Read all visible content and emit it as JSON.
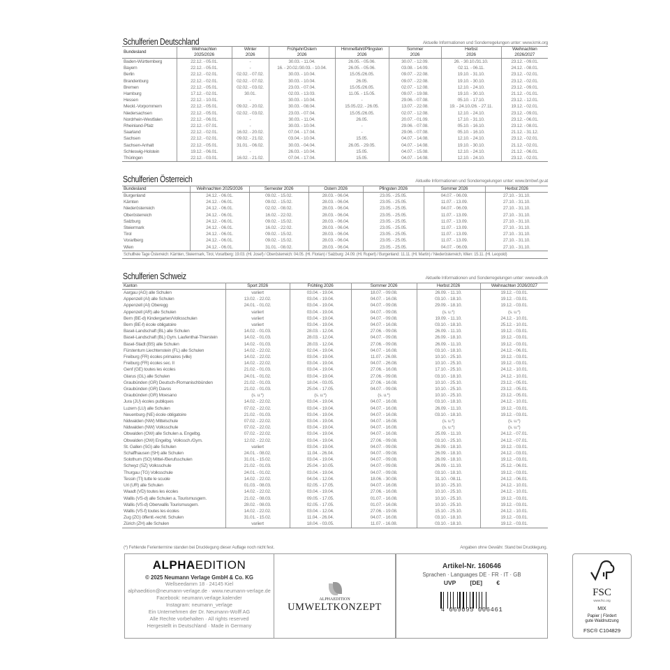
{
  "germany": {
    "title": "Schulferien Deutschland",
    "info": "Aktuelle Informationen und Sonderregelungen unter: www.kmk.org",
    "headers": [
      [
        "Bundesland",
        ""
      ],
      [
        "Weihnachten",
        "2025/2026"
      ],
      [
        "Winter",
        "2026"
      ],
      [
        "Frühjahr/Ostern",
        "2026"
      ],
      [
        "Himmelfahrt/Pfingsten",
        "2026"
      ],
      [
        "Sommer",
        "2026"
      ],
      [
        "Herbst",
        "2026"
      ],
      [
        "Weihnachten",
        "2026/2027"
      ]
    ],
    "rows": [
      [
        "Baden-Württemberg",
        "22.12. - 05.01.",
        "-",
        "30.03. - 11.04.",
        "26.05. - 05.06.",
        "30.07. - 12.09.",
        "26. - 30.10./31.10.",
        "23.12. - 09.01."
      ],
      [
        "Bayern",
        "22.12. - 05.01.",
        "-",
        "16. - 20.02./30.03. - 10.04.",
        "26.05. - 05.06.",
        "03.08. - 14.09.",
        "02.11. - 06.11.",
        "24.12. - 08.01."
      ],
      [
        "Berlin",
        "22.12. - 02.01.",
        "02.02. - 07.02.",
        "30.03. - 10.04.",
        "15.05./26.05.",
        "09.07. - 22.08.",
        "19.10. - 31.10.",
        "23.12. - 02.01."
      ],
      [
        "Brandenburg",
        "22.12. - 02.01.",
        "02.02. - 07.02.",
        "30.03. - 10.04.",
        "26.05.",
        "09.07. - 22.08.",
        "19.10. - 30.10.",
        "23.12. - 02.01."
      ],
      [
        "Bremen",
        "22.12. - 05.01.",
        "02.02. - 03.02.",
        "23.03. - 07.04.",
        "15.05./26.05.",
        "02.07. - 12.08.",
        "12.10. - 24.10.",
        "23.12. - 09.01."
      ],
      [
        "Hamburg",
        "17.12. - 02.01.",
        "30.01.",
        "02.03. - 13.03.",
        "11.05. - 15.05.",
        "09.07. - 19.08.",
        "19.10. - 30.10.",
        "21.12. - 01.01."
      ],
      [
        "Hessen",
        "22.12. - 10.01.",
        "-",
        "30.03. - 10.04.",
        "-",
        "29.06. - 07.08.",
        "05.10. - 17.10.",
        "23.12. - 12.01."
      ],
      [
        "Meckl.-Vorpommern",
        "22.12. - 05.01.",
        "09.02. - 20.02.",
        "30.03. - 08.04.",
        "15.05./22. - 26.05.",
        "13.07. - 22.08.",
        "19. - 24.10./26. - 27.11.",
        "19.12. - 02.01."
      ],
      [
        "Niedersachsen",
        "22.12. - 05.01.",
        "02.02. - 03.02.",
        "23.03. - 07.04.",
        "15.05./26.05.",
        "02.07. - 12.08.",
        "12.10. - 24.10.",
        "23.12. - 09.01."
      ],
      [
        "Nordrhein-Westfalen",
        "22.12. - 06.01.",
        "-",
        "30.03. - 11.04.",
        "26.05.",
        "20.07. - 01.09.",
        "17.10. - 31.10.",
        "23.12. - 06.01."
      ],
      [
        "Rheinland-Pfalz",
        "22.12. - 07.01.",
        "-",
        "30.03. - 10.04.",
        "-",
        "29.06. - 07.08.",
        "05.10. - 16.10.",
        "23.12. - 08.01."
      ],
      [
        "Saarland",
        "22.12. - 02.01.",
        "16.02. - 20.02.",
        "07.04. - 17.04.",
        "-",
        "29.06. - 07.08.",
        "05.10. - 16.10.",
        "21.12. - 31.12."
      ],
      [
        "Sachsen",
        "22.12. - 02.01.",
        "09.02. - 21.02.",
        "03.04. - 10.04.",
        "15.05.",
        "04.07. - 14.08.",
        "12.10. - 24.10.",
        "23.12. - 02.01."
      ],
      [
        "Sachsen-Anhalt",
        "22.12. - 05.01.",
        "31.01. - 06.02.",
        "30.03. - 04.04.",
        "26.05. - 29.05.",
        "04.07. - 14.08.",
        "19.10. - 30.10.",
        "21.12. - 02.01."
      ],
      [
        "Schleswig-Holstein",
        "19.12. - 06.01.",
        "-",
        "26.03. - 10.04.",
        "15.05.",
        "04.07. - 15.08.",
        "12.10. - 24.10.",
        "21.12. - 06.01."
      ],
      [
        "Thüringen",
        "22.12. - 03.01.",
        "16.02. - 21.02.",
        "07.04. - 17.04.",
        "15.05.",
        "04.07. - 14.08.",
        "12.10. - 24.10.",
        "23.12. - 02.01."
      ]
    ]
  },
  "austria": {
    "title": "Schulferien Österreich",
    "info": "Aktuelle Informationen und Sonderregelungen unter: www.bmbwf.gv.at",
    "headers": [
      [
        "Bundesland"
      ],
      [
        "Weihnachten 2025/2026"
      ],
      [
        "Semester 2026"
      ],
      [
        "Ostern 2026"
      ],
      [
        "Pfingsten 2026"
      ],
      [
        "Sommer 2026"
      ],
      [
        "Herbst 2026"
      ]
    ],
    "rows": [
      [
        "Burgenland",
        "24.12. - 06.01.",
        "09.02. - 15.02.",
        "28.03. - 06.04.",
        "23.05. - 25.05.",
        "04.07. - 06.09.",
        "27.10. - 31.10."
      ],
      [
        "Kärnten",
        "24.12. - 06.01.",
        "09.02. - 15.02.",
        "28.03. - 06.04.",
        "23.05. - 25.05.",
        "11.07. - 13.09.",
        "27.10. - 31.10."
      ],
      [
        "Niederösterreich",
        "24.12. - 06.01.",
        "02.02. - 08.02.",
        "28.03. - 06.04.",
        "23.05. - 25.05.",
        "04.07. - 06.09.",
        "27.10. - 31.10."
      ],
      [
        "Oberösterreich",
        "24.12. - 06.01.",
        "16.02. - 22.02.",
        "28.03. - 06.04.",
        "23.05. - 25.05.",
        "11.07. - 13.09.",
        "27.10. - 31.10."
      ],
      [
        "Salzburg",
        "24.12. - 06.01.",
        "09.02. - 15.02.",
        "28.03. - 06.04.",
        "23.05. - 25.05.",
        "11.07. - 13.09.",
        "27.10. - 31.10."
      ],
      [
        "Steiermark",
        "24.12. - 06.01.",
        "16.02. - 22.02.",
        "28.03. - 06.04.",
        "23.05. - 25.05.",
        "11.07. - 13.09.",
        "27.10. - 31.10."
      ],
      [
        "Tirol",
        "24.12. - 06.01.",
        "09.02. - 15.02.",
        "28.03. - 06.04.",
        "23.05. - 25.05.",
        "11.07. - 13.09.",
        "27.10. - 31.10."
      ],
      [
        "Vorarlberg",
        "24.12. - 06.01.",
        "09.02. - 15.02.",
        "28.03. - 06.04.",
        "23.05. - 25.05.",
        "11.07. - 13.09.",
        "27.10. - 31.10."
      ],
      [
        "Wien",
        "24.12. - 06.01.",
        "31.01. - 08.02.",
        "28.03. - 06.04.",
        "23.05. - 25.05.",
        "04.07. - 06.09.",
        "27.10. - 31.10."
      ]
    ],
    "note": "Schulfreie Tage Österreich: Kärnten, Steiermark, Tirol, Vorarlberg: 19.03. (Hl. Josef) / Oberösterreich: 04.05. (Hl. Florian) / Salzburg: 24.09. (Hl. Rupert) / Burgenland: 11.11. (Hl. Martin) / Niederösterreich, Wien: 15.11. (Hl. Leopold)"
  },
  "switzerland": {
    "title": "Schulferien Schweiz",
    "info": "Aktuelle Informationen und Sonderregelungen unter: www.edk.ch",
    "headers": [
      [
        "Kanton"
      ],
      [
        "Sport 2026"
      ],
      [
        "Frühling 2026"
      ],
      [
        "Sommer 2026"
      ],
      [
        "Herbst 2026"
      ],
      [
        "Weihnachten 2026/2027"
      ]
    ],
    "rows": [
      [
        "Aargau (AG) alle Schulen",
        "variiert",
        "03.04. - 19.04.",
        "18.07. - 09.08.",
        "26.09. - 11.10.",
        "19.12. - 03.01."
      ],
      [
        "Appenzell (AI) alle Schulen",
        "13.02. - 22.02.",
        "03.04. - 19.04.",
        "04.07. - 16.08.",
        "03.10. - 18.10.",
        "19.12. - 03.01."
      ],
      [
        "Appenzell (AI) Oberegg",
        "24.01. - 01.02.",
        "03.04. - 19.04.",
        "04.07. - 09.08.",
        "29.09. - 18.10.",
        "19.12. - 03.01."
      ],
      [
        "Appenzell (AR) alle Schulen",
        "variiert",
        "03.04. - 19.04.",
        "04.07. - 09.08.",
        "(s. u.*)",
        "(s. u.*)"
      ],
      [
        "Bern (BE-d) Kindergarten/Volksschulen",
        "variiert",
        "03.04. - 19.04.",
        "04.07. - 09.08.",
        "19.09. - 11.10.",
        "24.12. - 10.01."
      ],
      [
        "Bern (BE-f) école obligatoire",
        "variiert",
        "03.04. - 19.04.",
        "04.07. - 16.08.",
        "03.10. - 18.10.",
        "25.12. - 10.01."
      ],
      [
        "Basel-Landschaft (BL) alle Schulen",
        "14.02. - 01.03.",
        "28.03. - 12.04.",
        "27.06. - 09.08.",
        "26.09. - 11.10.",
        "19.12. - 03.01."
      ],
      [
        "Basel-Landschaft (BL) Gym. Laufenthal-Thierstein",
        "14.02. - 01.03.",
        "28.03. - 12.04.",
        "04.07. - 09.08.",
        "26.09. - 18.10.",
        "19.12. - 03.01."
      ],
      [
        "Basel-Stadt (BS) alle Schulen",
        "14.02. - 01.03.",
        "28.03. - 12.04.",
        "27.06. - 09.08.",
        "26.09. - 11.10.",
        "19.12. - 03.01."
      ],
      [
        "Fürstentum Liechtenstein (FL) alle Schulen",
        "14.02. - 22.02.",
        "02.04. - 19.04.",
        "04.07. - 16.08.",
        "03.10. - 18.10.",
        "24.12. - 06.01."
      ],
      [
        "Freiburg (FR) écoles primaires (ville)",
        "14.02. - 22.02.",
        "03.04. - 19.04.",
        "11.07. - 26.08.",
        "10.10. - 25.10.",
        "19.12. - 03.01."
      ],
      [
        "Freiburg (FR) écoles sec. II",
        "14.02. - 22.02.",
        "03.04. - 19.04.",
        "04.07. - 26.08.",
        "10.10. - 25.10.",
        "19.12. - 03.01."
      ],
      [
        "Genf (GE) toutes les écoles",
        "21.02. - 01.03.",
        "03.04. - 19.04.",
        "27.06. - 16.08.",
        "17.10. - 25.10.",
        "24.12. - 10.01."
      ],
      [
        "Glarus (GL) alle Schulen",
        "24.01. - 01.02.",
        "03.04. - 19.04.",
        "27.06. - 09.08.",
        "03.10. - 18.10.",
        "24.12. - 10.01."
      ],
      [
        "Graubünden (GR) Deutsch-/Romanischbünden",
        "21.02. - 01.03.",
        "18.04. - 03.05.",
        "27.06. - 16.08.",
        "10.10. - 25.10.",
        "23.12. - 05.01."
      ],
      [
        "Graubünden (GR) Davos",
        "21.02. - 01.03.",
        "25.04. - 17.05.",
        "04.07. - 09.08.",
        "10.10. - 25.10.",
        "23.12. - 05.01."
      ],
      [
        "Graubünden (GR) Moesano",
        "(s. u.*)",
        "(s. u.*)",
        "(s. u.*)",
        "10.10. - 25.10.",
        "23.12. - 05.01."
      ],
      [
        "Jura (JU) écoles publiques",
        "14.02. - 22.02.",
        "03.04. - 19.04.",
        "04.07. - 16.08.",
        "03.10. - 18.10.",
        "24.12. - 10.01."
      ],
      [
        "Luzern (LU) alle Schulen",
        "07.02. - 22.02.",
        "03.04. - 19.04.",
        "04.07. - 16.08.",
        "26.09. - 11.10.",
        "19.12. - 03.01."
      ],
      [
        "Neuenburg (NE) école obligatoire",
        "21.02. - 01.03.",
        "03.04. - 19.04.",
        "04.07. - 16.08.",
        "03.10. - 18.10.",
        "19.12. - 03.01."
      ],
      [
        "Nidwalden (NW) Mittelschule",
        "07.02. - 22.02.",
        "03.04. - 19.04.",
        "04.07. - 16.08.",
        "(s. u.*)",
        "(s. u.*)"
      ],
      [
        "Nidwalden (NW) Volksschule",
        "07.02. - 22.02.",
        "03.04. - 19.04.",
        "04.07. - 16.08.",
        "(s. u.*)",
        "(s. u.*)"
      ],
      [
        "Obwalden (OW) alle Schulen a. Engelbg.",
        "07.02. - 22.02.",
        "03.04. - 19.04.",
        "04.07. - 16.08.",
        "25.09. - 11.10.",
        "24.12. - 07.01."
      ],
      [
        "Obwalden (OW) Engelbg. Volkssch./Gym.",
        "12.02. - 22.02.",
        "03.04. - 19.04.",
        "27.06. - 09.08.",
        "03.10. - 25.10.",
        "24.12. - 07.01."
      ],
      [
        "St. Gallen (SG) alle Schulen",
        "variiert",
        "03.04. - 19.04.",
        "04.07. - 09.08.",
        "26.09. - 18.10.",
        "19.12. - 03.01."
      ],
      [
        "Schaffhausen (SH) alle Schulen",
        "24.01. - 08.02.",
        "11.04. - 26.04.",
        "04.07. - 09.08.",
        "26.09. - 18.10.",
        "24.12. - 03.01."
      ],
      [
        "Solothurn (SO) Mittel-/Berufsschulen",
        "31.01. - 15.02.",
        "03.04. - 19.04.",
        "04.07. - 09.08.",
        "26.09. - 18.10.",
        "19.12. - 03.01."
      ],
      [
        "Schwyz (SZ) Volksschule",
        "21.02. - 01.03.",
        "25.04. - 10.05.",
        "04.07. - 09.08.",
        "26.09. - 11.10.",
        "25.12. - 06.01."
      ],
      [
        "Thurgau (TG) Volksschule",
        "24.01. - 01.02.",
        "03.04. - 19.04.",
        "04.07. - 09.08.",
        "03.10. - 18.10.",
        "19.12. - 03.01."
      ],
      [
        "Tessin (TI) tutte le scuole",
        "14.02. - 22.02.",
        "04.04. - 12.04.",
        "18.06. - 30.08.",
        "31.10. - 08.11.",
        "24.12. - 06.01."
      ],
      [
        "Uri (UR) alle Schulen",
        "01.03. - 08.03.",
        "02.05. - 17.05.",
        "04.07. - 16.08.",
        "10.10. - 25.10.",
        "24.12. - 10.01."
      ],
      [
        "Waadt (VD) toutes les écoles",
        "14.02. - 22.02.",
        "03.04. - 19.04.",
        "27.06. - 16.08.",
        "10.10. - 25.10.",
        "24.12. - 10.01."
      ],
      [
        "Wallis (VS-d) alle Schulen a. Tourismusgem.",
        "21.02. - 08.03.",
        "09.05. - 17.05.",
        "01.07. - 16.08.",
        "10.10. - 25.10.",
        "19.12. - 03.01."
      ],
      [
        "Wallis (VS-d) Oberwallis Tourismusgem.",
        "28.02. - 08.03.",
        "02.05. - 17.05.",
        "01.07. - 16.08.",
        "10.10. - 25.10.",
        "19.12. - 03.01."
      ],
      [
        "Wallis (VS-f) toutes les écoles",
        "14.02. - 22.02.",
        "03.04. - 12.04.",
        "27.06. - 19.08.",
        "15.10. - 25.10.",
        "24.12. - 10.01."
      ],
      [
        "Zug (ZG) öffentl.-rechtl. Schulen",
        "31.01. - 15.02.",
        "11.04. - 26.04.",
        "04.07. - 16.08.",
        "03.10. - 18.10.",
        "19.12. - 03.01."
      ],
      [
        "Zürich (ZH) alle Schulen",
        "variiert",
        "18.04. - 03.05.",
        "11.07. - 16.08.",
        "03.10. - 18.10.",
        "19.12. - 03.01."
      ]
    ]
  },
  "footer": {
    "note": "(*) Fehlende Ferientermine standen bei Drucklegung dieser Auflage noch nicht fest.",
    "disclaimer": "Angaben ohne Gewähr. Stand bei Drucklegung.",
    "publisher": {
      "logo_bold": "ALPHA",
      "logo_light": "EDITION",
      "copyright": "© 2025 Neumann Verlage GmbH & Co. KG",
      "lines": [
        "Wellseedamm 18 · 24145 Kiel",
        "alphaedition@neumann-verlage.de · www.neumann-verlage.de",
        "Facebook: neumann.verlage.kalender",
        "Instagram: neumann_verlage",
        "Ein Unternehmen der Dr. Neumann-Wolff AG",
        "Alle Rechte vorbehalten · All rights reserved",
        "Hergestellt in Deutschland · Made in Germany"
      ]
    },
    "eco": {
      "small": "ALPHAEDITION",
      "big": "UMWELTKONZEPT"
    },
    "article": {
      "number": "Artikel-Nr. 160646",
      "languages": "Sprachen · Languages DE · FR · IT · GB",
      "uvp": "UVP [DE] €",
      "barcode": "4 069095 006461"
    },
    "fsc": {
      "name": "FSC",
      "url": "www.fsc.org",
      "mix": "MIX",
      "text1": "Papier | Fördert",
      "text2": "gute Waldnutzung",
      "code": "FSC® C104829"
    }
  }
}
